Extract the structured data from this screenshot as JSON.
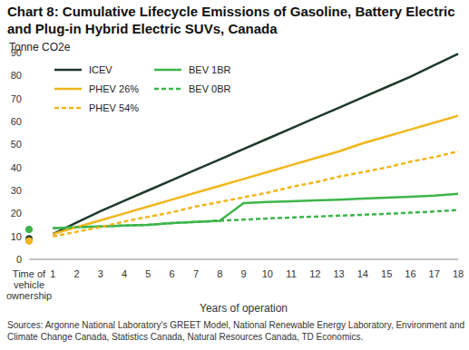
{
  "chart_data": {
    "type": "line",
    "title": "Chart 8: Cumulative Lifecycle Emissions of Gasoline, Battery Electric and Plug-in Hybrid Electric SUVs, Canada",
    "ylabel": "Tonne CO2e",
    "xlabel": "Years of operation",
    "source": "Sources: Argonne National Laboratory's GREET Model, National Renewable Energy Laboratory, Environment and Climate Change Canada, Statistics Canada, Natural Resources Canada, TD Economics.",
    "categories": [
      "Time of vehicle ownership",
      "1",
      "2",
      "3",
      "4",
      "5",
      "6",
      "7",
      "8",
      "9",
      "10",
      "11",
      "12",
      "13",
      "14",
      "15",
      "16",
      "17",
      "18"
    ],
    "ylim": [
      0,
      90
    ],
    "yticks": [
      0,
      10,
      20,
      30,
      40,
      50,
      60,
      70,
      80,
      90
    ],
    "grid": false,
    "legend": "upper left",
    "series": [
      {
        "name": "ICEV",
        "color": "#1e3a2b",
        "line_style": "solid",
        "ownership": 9,
        "values": [
          null,
          11,
          16,
          21,
          25.5,
          30,
          34.5,
          39,
          43.5,
          48,
          52.5,
          57,
          61.5,
          66,
          70.5,
          75,
          79.5,
          84.5,
          89.5
        ]
      },
      {
        "name": "BEV 1BR",
        "color": "#3cb54a",
        "line_style": "solid",
        "ownership": 13,
        "values": [
          null,
          13.5,
          14,
          14.3,
          14.7,
          15,
          15.8,
          16.3,
          16.8,
          24.5,
          25,
          25.3,
          25.7,
          26,
          26.4,
          26.8,
          27.2,
          27.7,
          28.5
        ]
      },
      {
        "name": "PHEV 26%",
        "color": "#f2b61c",
        "line_style": "solid",
        "ownership": 8,
        "values": [
          null,
          11,
          14,
          17,
          20,
          23,
          26,
          29,
          32,
          35,
          38,
          41,
          44,
          47,
          50.5,
          53.5,
          56.5,
          59.5,
          62.5
        ]
      },
      {
        "name": "BEV 0BR",
        "color": "#3cb54a",
        "line_style": "dashed",
        "ownership": 13,
        "values": [
          null,
          13.5,
          14,
          14.3,
          14.7,
          15,
          15.8,
          16.3,
          16.8,
          17.3,
          17.8,
          18.2,
          18.6,
          19,
          19.4,
          19.8,
          20.3,
          20.8,
          21.5
        ]
      },
      {
        "name": "PHEV 54%",
        "color": "#f2b61c",
        "line_style": "dashed",
        "ownership": 8,
        "values": [
          null,
          10,
          12,
          14,
          16.5,
          18.5,
          20.5,
          23,
          25,
          27,
          29,
          31.5,
          33.5,
          36,
          38,
          40,
          42.5,
          44.5,
          47
        ]
      }
    ]
  }
}
